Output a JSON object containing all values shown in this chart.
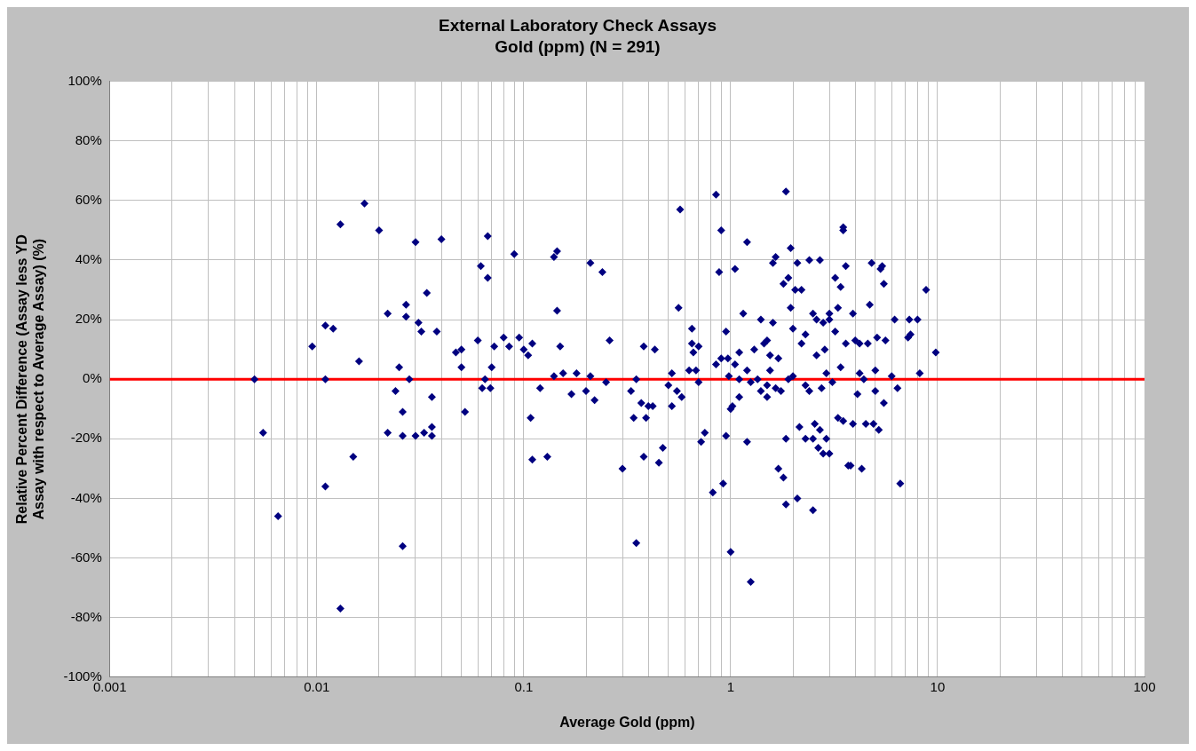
{
  "chart_data": {
    "type": "scatter",
    "title": "External Laboratory Check Assays",
    "subtitle": "Gold (ppm) (N = 291)",
    "xlabel": "Average Gold (ppm)",
    "ylabel": "Relative Percent Difference (Assay less YD Assay with respect to Average Assay) (%)",
    "log": "x",
    "grid": true,
    "legend": false,
    "marker": "diamond",
    "xlim": [
      0.001,
      100
    ],
    "xticks": [
      0.001,
      {
        "value": 0.002,
        "label": null
      },
      {
        "value": 0.003,
        "label": null
      },
      {
        "value": 0.004,
        "label": null
      },
      {
        "value": 0.005,
        "label": null
      },
      {
        "value": 0.006,
        "label": null
      },
      {
        "value": 0.007,
        "label": null
      },
      {
        "value": 0.008,
        "label": null
      },
      {
        "value": 0.009,
        "label": null
      },
      0.01,
      {
        "value": 0.02,
        "label": null
      },
      {
        "value": 0.03,
        "label": null
      },
      {
        "value": 0.04,
        "label": null
      },
      {
        "value": 0.05,
        "label": null
      },
      {
        "value": 0.06,
        "label": null
      },
      {
        "value": 0.07,
        "label": null
      },
      {
        "value": 0.08,
        "label": null
      },
      {
        "value": 0.09,
        "label": null
      },
      0.1,
      {
        "value": 0.2,
        "label": null
      },
      {
        "value": 0.3,
        "label": null
      },
      {
        "value": 0.4,
        "label": null
      },
      {
        "value": 0.5,
        "label": null
      },
      {
        "value": 0.6,
        "label": null
      },
      {
        "value": 0.7,
        "label": null
      },
      {
        "value": 0.8,
        "label": null
      },
      {
        "value": 0.9,
        "label": null
      },
      1,
      {
        "value": 2,
        "label": null
      },
      {
        "value": 3,
        "label": null
      },
      {
        "value": 4,
        "label": null
      },
      {
        "value": 5,
        "label": null
      },
      {
        "value": 6,
        "label": null
      },
      {
        "value": 7,
        "label": null
      },
      {
        "value": 8,
        "label": null
      },
      {
        "value": 9,
        "label": null
      },
      10,
      {
        "value": 20,
        "label": null
      },
      {
        "value": 30,
        "label": null
      },
      {
        "value": 40,
        "label": null
      },
      {
        "value": 50,
        "label": null
      },
      {
        "value": 60,
        "label": null
      },
      {
        "value": 70,
        "label": null
      },
      {
        "value": 80,
        "label": null
      },
      {
        "value": 90,
        "label": null
      },
      100
    ],
    "ylim": [
      -100,
      100
    ],
    "yticks": [
      {
        "value": -100,
        "label": "-100%"
      },
      {
        "value": -80,
        "label": "-80%"
      },
      {
        "value": -60,
        "label": "-60%"
      },
      {
        "value": -40,
        "label": "-40%"
      },
      {
        "value": -20,
        "label": "-20%"
      },
      {
        "value": 0,
        "label": "0%"
      },
      {
        "value": 20,
        "label": "20%"
      },
      {
        "value": 40,
        "label": "40%"
      },
      {
        "value": 60,
        "label": "60%"
      },
      {
        "value": 80,
        "label": "80%"
      },
      {
        "value": 100,
        "label": "100%"
      }
    ],
    "ref_lines": [
      {
        "axis": "y",
        "value": 0,
        "color": "#ff0000"
      }
    ],
    "series": [
      {
        "color": "#000080",
        "x": [
          0.005,
          0.0055,
          0.0065,
          0.0095,
          0.011,
          0.011,
          0.011,
          0.012,
          0.013,
          0.013,
          0.015,
          0.016,
          0.017,
          0.02,
          0.022,
          0.022,
          0.024,
          0.025,
          0.026,
          0.026,
          0.027,
          0.027,
          0.028,
          0.026,
          0.03,
          0.03,
          0.031,
          0.032,
          0.033,
          0.034,
          0.036,
          0.036,
          0.036,
          0.038,
          0.04,
          0.047,
          0.05,
          0.05,
          0.052,
          0.06,
          0.062,
          0.063,
          0.065,
          0.067,
          0.067,
          0.069,
          0.07,
          0.072,
          0.08,
          0.085,
          0.09,
          0.095,
          0.1,
          0.105,
          0.108,
          0.11,
          0.11,
          0.12,
          0.13,
          0.14,
          0.14,
          0.145,
          0.145,
          0.15,
          0.155,
          0.17,
          0.18,
          0.2,
          0.21,
          0.21,
          0.22,
          0.24,
          0.25,
          0.26,
          0.3,
          0.33,
          0.34,
          0.35,
          0.35,
          0.37,
          0.38,
          0.38,
          0.39,
          0.4,
          0.42,
          0.43,
          0.45,
          0.47,
          0.5,
          0.52,
          0.52,
          0.55,
          0.56,
          0.57,
          0.58,
          0.63,
          0.65,
          0.65,
          0.66,
          0.68,
          0.7,
          0.7,
          0.72,
          0.75,
          0.82,
          0.85,
          0.85,
          0.88,
          0.9,
          0.9,
          0.92,
          0.95,
          0.95,
          0.97,
          0.98,
          1.0,
          1.0,
          1.02,
          1.05,
          1.05,
          1.1,
          1.1,
          1.15,
          1.2,
          1.2,
          1.25,
          1.25,
          1.3,
          1.35,
          1.4,
          1.4,
          1.45,
          1.5,
          1.5,
          1.55,
          1.55,
          1.6,
          1.6,
          1.65,
          1.65,
          1.7,
          1.7,
          1.75,
          1.8,
          1.8,
          1.85,
          1.85,
          1.85,
          1.9,
          1.9,
          1.95,
          1.95,
          2.0,
          2.0,
          2.05,
          2.1,
          2.1,
          2.15,
          2.2,
          2.2,
          2.3,
          2.3,
          2.4,
          2.4,
          2.5,
          2.5,
          2.5,
          2.55,
          2.6,
          2.6,
          2.65,
          2.7,
          2.7,
          2.75,
          2.8,
          2.8,
          2.85,
          2.9,
          2.9,
          3.0,
          3.0,
          3.0,
          3.1,
          3.2,
          3.2,
          3.3,
          3.4,
          3.4,
          3.5,
          3.5,
          3.5,
          3.6,
          3.6,
          3.7,
          3.8,
          3.9,
          3.9,
          4.0,
          4.1,
          4.2,
          4.3,
          4.4,
          4.5,
          4.6,
          4.7,
          4.8,
          4.9,
          5.0,
          5.1,
          5.2,
          5.3,
          5.4,
          5.5,
          5.5,
          5.6,
          6.0,
          6.2,
          6.4,
          6.6,
          7.2,
          7.3,
          7.4,
          8.0,
          8.2,
          8.8,
          9.8,
          5.0,
          4.2,
          3.3,
          2.3,
          1.2,
          1.5,
          1.1
        ],
        "values": [
          0,
          -18,
          -46,
          11,
          18,
          0,
          -36,
          17,
          52,
          -77,
          -26,
          6,
          59,
          50,
          22,
          -18,
          -4,
          4,
          -11,
          -56,
          25,
          21,
          0,
          -19,
          46,
          -19,
          19,
          16,
          -18,
          29,
          -16,
          -19,
          -6,
          16,
          47,
          9,
          10,
          4,
          -11,
          13,
          38,
          -3,
          0,
          34,
          48,
          -3,
          4,
          11,
          14,
          11,
          42,
          14,
          10,
          8,
          -13,
          -27,
          12,
          -3,
          -26,
          1,
          41,
          43,
          23,
          11,
          2,
          -5,
          2,
          -4,
          39,
          1,
          -7,
          36,
          -1,
          13,
          -30,
          -4,
          -13,
          0,
          -55,
          -8,
          -26,
          11,
          -13,
          -9,
          -9,
          10,
          -28,
          -23,
          -2,
          2,
          -9,
          -4,
          24,
          57,
          -6,
          3,
          12,
          17,
          9,
          3,
          -1,
          11,
          -21,
          -18,
          -38,
          5,
          62,
          36,
          50,
          7,
          -35,
          -19,
          16,
          7,
          1,
          -10,
          -58,
          -9,
          5,
          37,
          0,
          -6,
          22,
          -21,
          46,
          -68,
          -1,
          10,
          0,
          -4,
          20,
          12,
          -6,
          13,
          8,
          3,
          39,
          19,
          -3,
          41,
          -30,
          7,
          -4,
          32,
          -33,
          63,
          -42,
          -20,
          34,
          0,
          44,
          24,
          1,
          17,
          30,
          -40,
          39,
          -16,
          30,
          12,
          15,
          -2,
          -4,
          40,
          22,
          -44,
          -20,
          -15,
          20,
          8,
          -23,
          40,
          -17,
          -3,
          -25,
          19,
          10,
          -20,
          2,
          22,
          -25,
          20,
          -1,
          34,
          16,
          24,
          31,
          4,
          50,
          51,
          -14,
          38,
          12,
          -29,
          -29,
          -15,
          22,
          13,
          -5,
          12,
          -30,
          0,
          -15,
          12,
          25,
          39,
          -15,
          3,
          14,
          -17,
          37,
          38,
          32,
          -8,
          13,
          1,
          20,
          -3,
          -35,
          14,
          20,
          15,
          20,
          2,
          30,
          9,
          -4,
          2,
          -13,
          -20,
          3,
          -2,
          9
        ]
      }
    ]
  }
}
